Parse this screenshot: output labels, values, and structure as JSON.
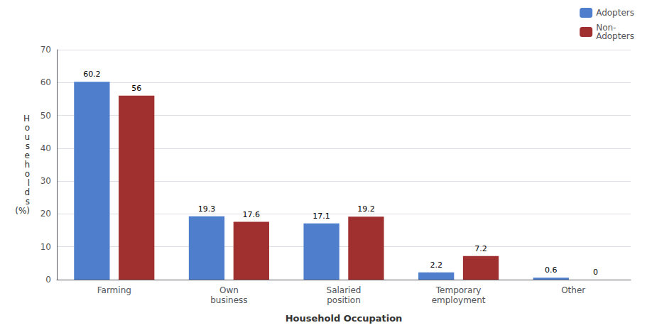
{
  "chart_data": {
    "type": "bar",
    "categories": [
      "Farming",
      "Own\nbusiness",
      "Salaried\nposition",
      "Temporary\nemployment",
      "Other"
    ],
    "series": [
      {
        "name": "Adopters",
        "color": "#4F7FCC",
        "values": [
          60.2,
          19.3,
          17.1,
          2.2,
          0.6
        ]
      },
      {
        "name": "Non-\nAdopters",
        "color": "#A03030",
        "values": [
          56,
          17.6,
          19.2,
          7.2,
          0
        ]
      }
    ],
    "xlabel": "Household Occupation",
    "ylabel": "H\no\nu\ns\ne\nh\no\nl\nd\ns\n(%)",
    "ylim": [
      0,
      70
    ],
    "yticks": [
      0,
      10,
      20,
      30,
      40,
      50,
      60,
      70
    ],
    "grid": true,
    "legend": "upper right",
    "data_labels": true
  }
}
